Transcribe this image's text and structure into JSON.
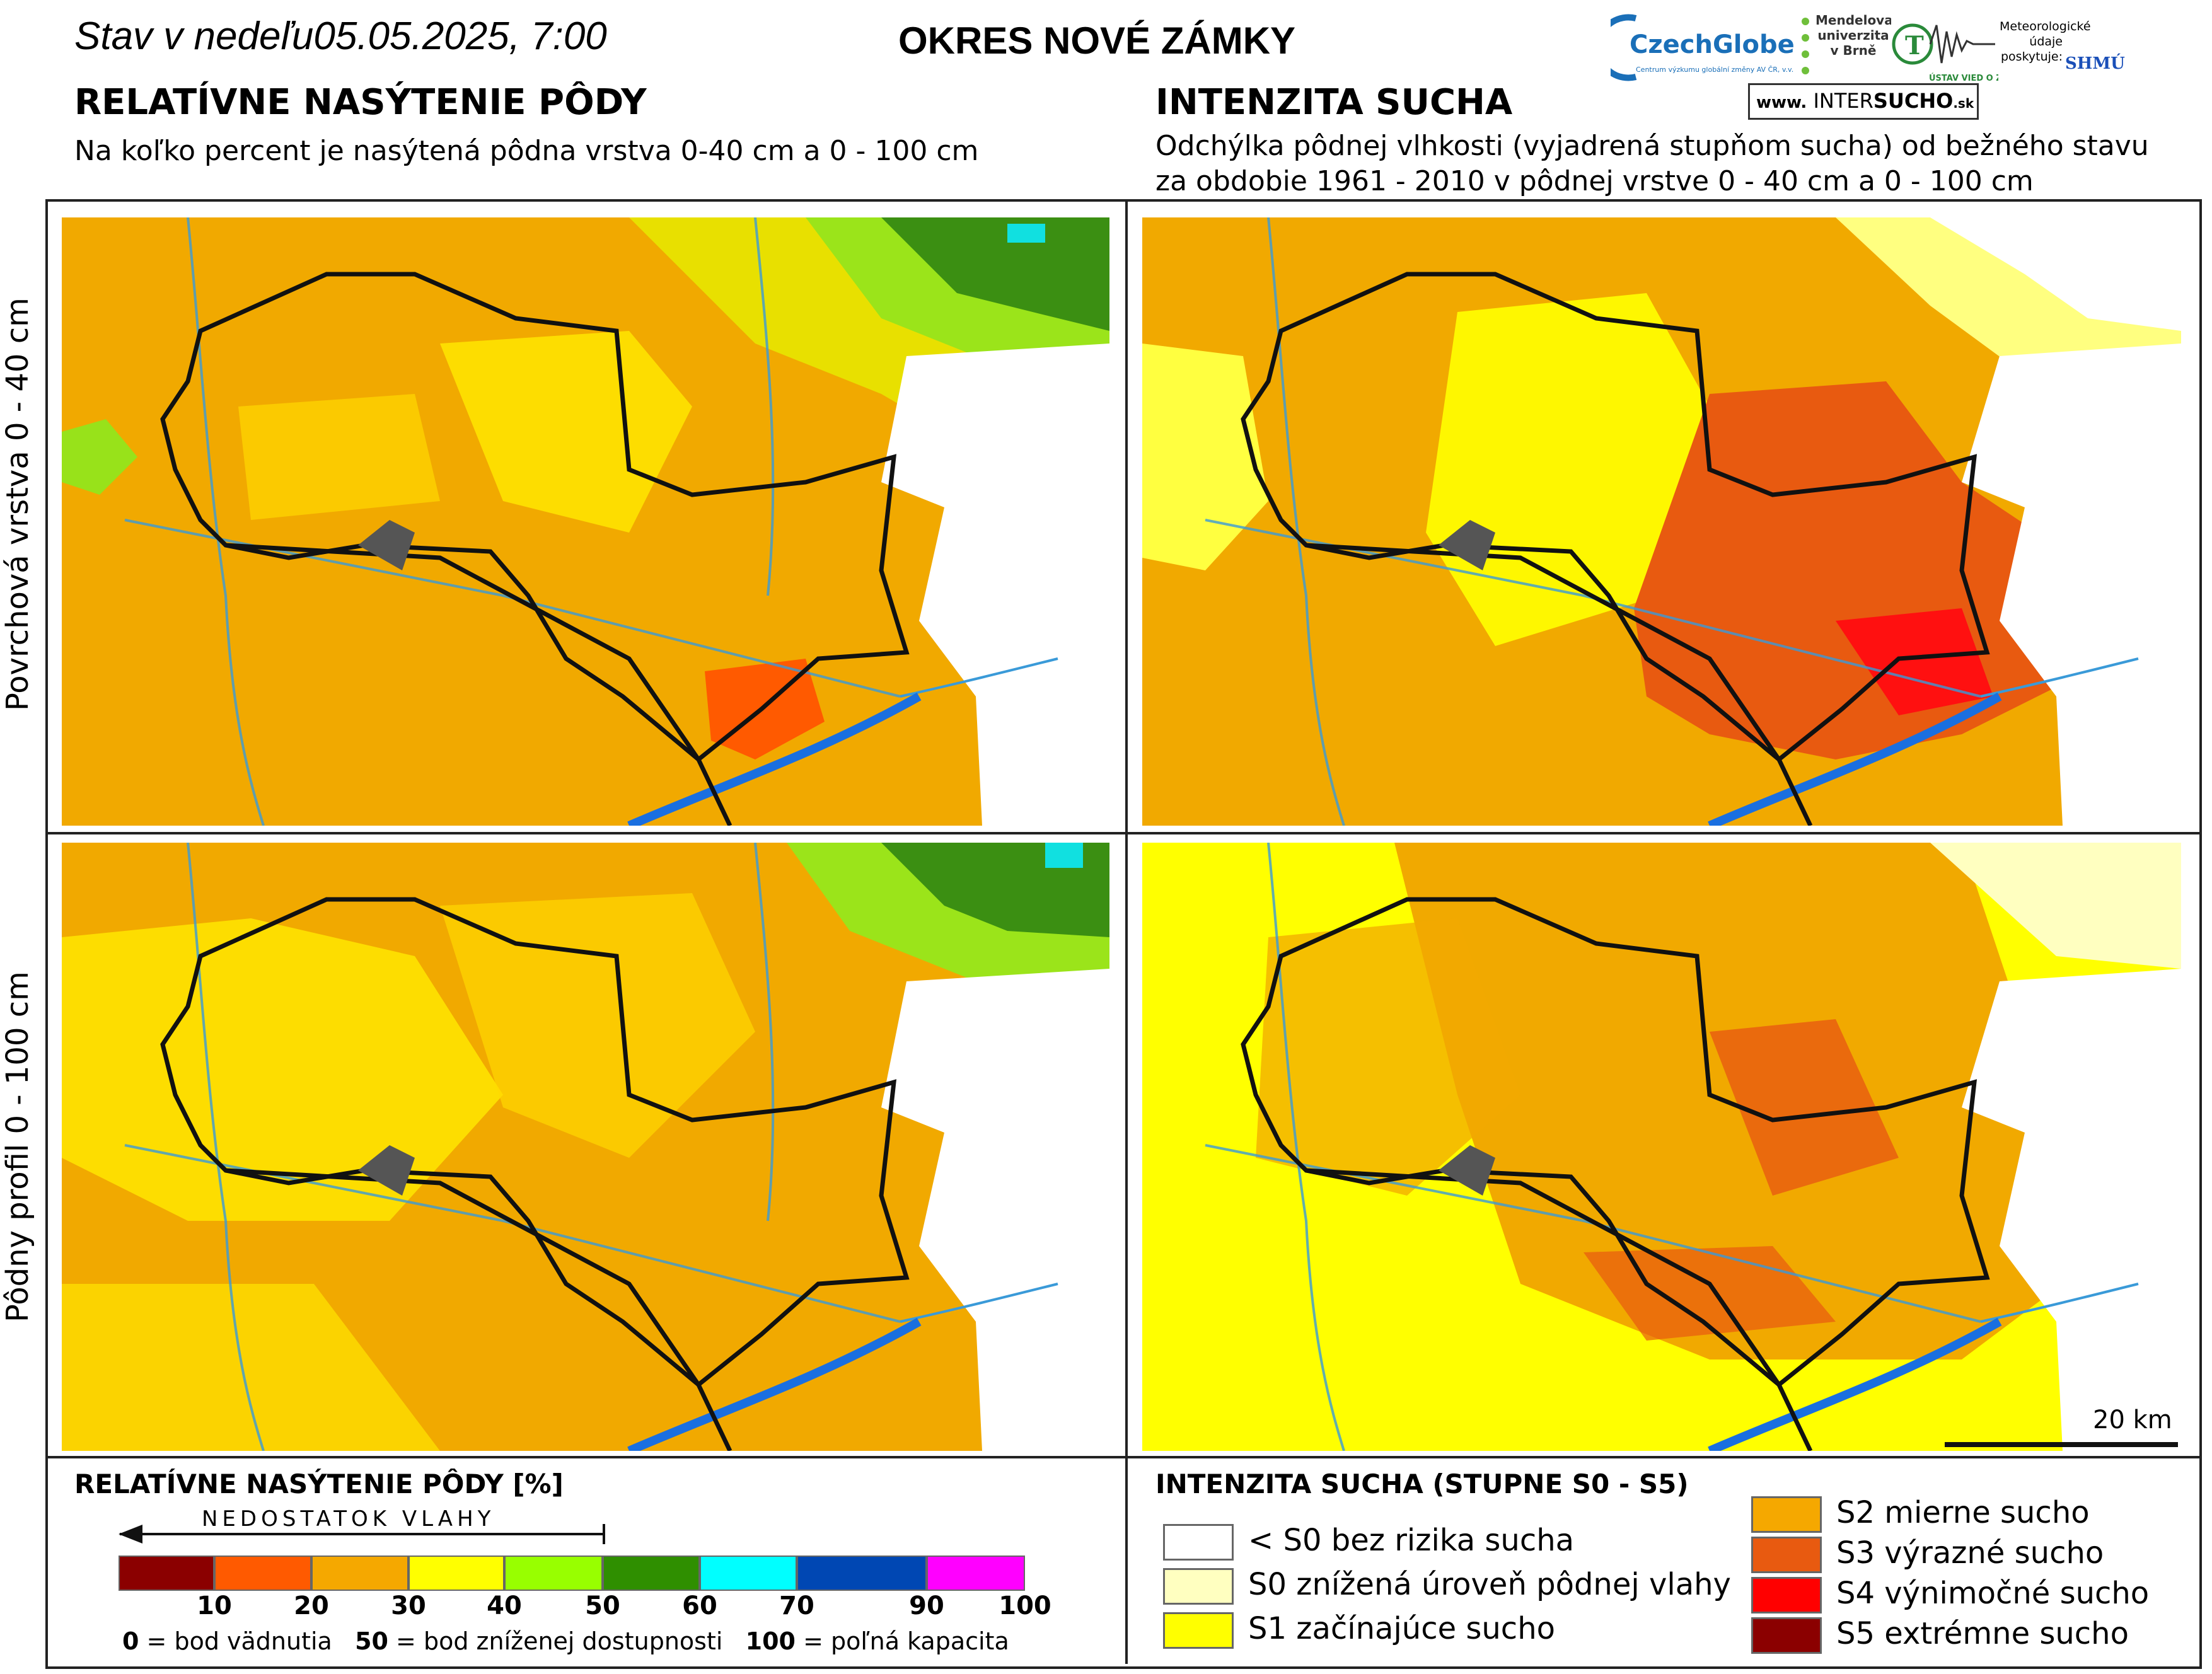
{
  "header": {
    "date_label": "Stav v nedeľu05.05.2025, 7:00",
    "district_title": "OKRES  NOVÉ ZÁMKY"
  },
  "left_section": {
    "title": "RELATÍVNE NASÝTENIE PÔDY",
    "subtitle": "Na koľko percent je nasýtená pôdna vrstva 0-40 cm a 0 - 100 cm"
  },
  "right_section": {
    "title": "INTENZITA SUCHA",
    "subtitle_line1": "Odchýlka pôdnej vlhkosti (vyjadrená stupňom sucha) od bežného stavu",
    "subtitle_line2": "za obdobie 1961 - 2010 v pôdnej vrstve 0 - 40 cm a 0 - 100 cm"
  },
  "logos": {
    "czechglobe": "CzechGlobe",
    "czechglobe_sub": "Centrum výzkumu globální změny AV ČR, v.v.i.",
    "mendel": "Mendelova univerzita v Brně",
    "ustav": "ÚSTAV VIED O ZEMI",
    "meteo": "Meteorologické údaje poskytuje:",
    "shmu": "SHMÚ",
    "intersucho_prefix": "www.",
    "intersucho_name_a": "INTER",
    "intersucho_name_b": "SUCHO",
    "intersucho_suffix": ".sk"
  },
  "row_labels": {
    "top": "Povrchová vrstva 0 - 40 cm",
    "bottom": "Pôdny profil 0 - 100 cm"
  },
  "scale_bar": {
    "label": "20 km"
  },
  "legend_left": {
    "title": "RELATÍVNE NASÝTENIE PÔDY [%]",
    "arrow_label": "NEDOSTATOK VLAHY",
    "colors": [
      "#8b0000",
      "#ff5a00",
      "#f5a800",
      "#ffff00",
      "#98ff00",
      "#2f8f00",
      "#00ffff",
      "#0047b3",
      "#ff00ff"
    ],
    "ticks": [
      "10",
      "20",
      "30",
      "40",
      "50",
      "60",
      "70",
      "90",
      "100"
    ],
    "note_0_value": "0",
    "note_0_text": " = bod vädnutia",
    "note_50_value": "50",
    "note_50_text": " = bod zníženej dostupnosti",
    "note_100_value": "100",
    "note_100_text": " = poľná kapacita"
  },
  "legend_right": {
    "title": "INTENZITA SUCHA (STUPNE S0 - S5)",
    "items": [
      {
        "label": "< S0 bez rizika sucha",
        "color": "#ffffff"
      },
      {
        "label": "S0 znížená úroveň pôdnej vlahy",
        "color": "#ffffc0"
      },
      {
        "label": "S1 začínajúce sucho",
        "color": "#ffff00"
      },
      {
        "label": "S2 mierne sucho",
        "color": "#f5a800"
      },
      {
        "label": "S3 výrazné sucho",
        "color": "#e85a10"
      },
      {
        "label": "S4 výnimočné sucho",
        "color": "#ff0000"
      },
      {
        "label": "S5 extrémne sucho",
        "color": "#8b0000"
      }
    ]
  }
}
